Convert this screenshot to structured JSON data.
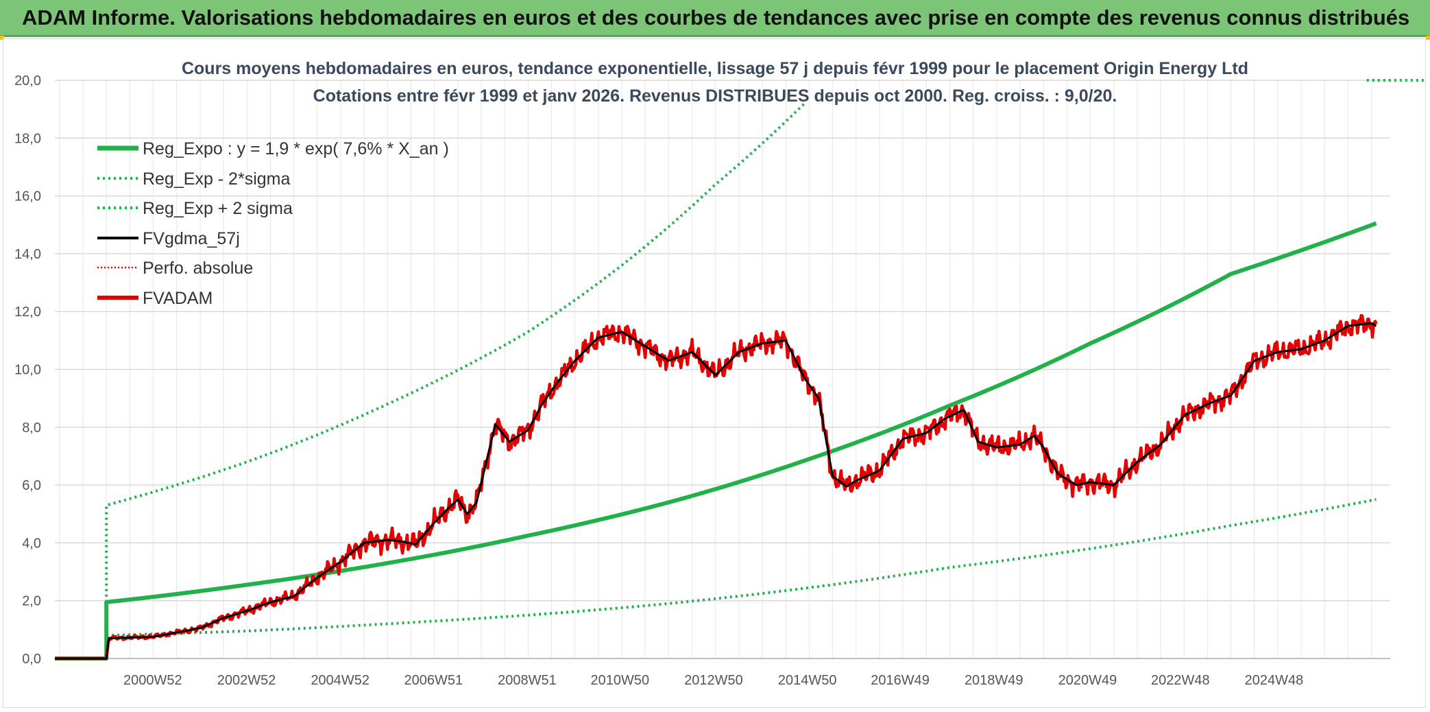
{
  "banner": {
    "title": "ADAM Informe. Valorisations hebdomadaires en euros et des courbes de tendances avec prise en compte des revenus connus distribués"
  },
  "colors": {
    "banner_bg": "#7cc576",
    "reg_expo": "#22b04b",
    "bands": "#22b04b",
    "fvgdma": "#000000",
    "perfo": "#e60000",
    "fvadam": "#e60000",
    "grid": "#d9d9d9"
  },
  "chart_data": {
    "type": "line",
    "title_line1": "Cours moyens hebdomadaires en euros, tendance exponentielle, lissage 57 j depuis févr 1999 pour le placement Origin Energy Ltd",
    "title_line2": "Cotations entre févr 1999 et janv 2026. Revenus DISTRIBUES depuis oct 2000. Reg. croiss. : 9,0/20.",
    "ylim": [
      0,
      20
    ],
    "y_ticks": [
      "0,0",
      "2,0",
      "4,0",
      "6,0",
      "8,0",
      "10,0",
      "12,0",
      "14,0",
      "16,0",
      "18,0",
      "20,0"
    ],
    "x_range": [
      1998.9,
      2027.4
    ],
    "x_tick_labels": [
      "2000W52",
      "2002W52",
      "2004W52",
      "2006W51",
      "2008W51",
      "2010W50",
      "2012W50",
      "2014W50",
      "2016W49",
      "2018W49",
      "2020W49",
      "2022W48",
      "2024W48"
    ],
    "x_tick_years": [
      2000.99,
      2002.99,
      2004.99,
      2006.98,
      2008.98,
      2010.96,
      2012.96,
      2014.96,
      2016.94,
      2018.94,
      2020.94,
      2022.92,
      2024.92
    ],
    "grid": true,
    "legend_position": "top-left",
    "data_start_year": 2000.0,
    "data_end_year": 2027.1,
    "series": [
      {
        "name": "Reg_Expo : y = 1,9 * exp( 7,6% *  X_an )",
        "style": "solid-thick",
        "color": "#22b04b",
        "x": [
          2000.0,
          2003.0,
          2006.0,
          2009.0,
          2012.0,
          2015.0,
          2018.0,
          2021.0,
          2024.0,
          2027.1
        ],
        "y": [
          1.95,
          2.55,
          3.3,
          4.25,
          5.4,
          6.9,
          8.75,
          10.9,
          13.3,
          15.05
        ]
      },
      {
        "name": "Reg_Exp - 2*sigma",
        "style": "dotted",
        "color": "#22b04b",
        "x": [
          2000.0,
          2003.0,
          2006.0,
          2009.0,
          2012.0,
          2015.0,
          2018.0,
          2021.0,
          2024.0,
          2027.1
        ],
        "y": [
          0.8,
          0.95,
          1.2,
          1.5,
          1.9,
          2.45,
          3.15,
          3.8,
          4.6,
          5.5
        ]
      },
      {
        "name": "Reg_Exp + 2 sigma",
        "style": "dotted",
        "color": "#22b04b",
        "x": [
          2000.0,
          2003.0,
          2006.0,
          2009.0,
          2011.0,
          2013.0,
          2014.9
        ],
        "y": [
          5.3,
          6.8,
          8.8,
          11.3,
          13.6,
          16.4,
          19.2
        ],
        "x_flat": [
          2026.9,
          2028.5
        ],
        "y_flat": [
          20.0,
          20.0
        ]
      },
      {
        "name": "FVgdma_57j",
        "style": "solid",
        "color": "#000000",
        "x": [
          1998.9,
          2000.0,
          2000.05,
          2001.0,
          2001.5,
          2002.0,
          2002.5,
          2003.0,
          2003.5,
          2004.0,
          2004.5,
          2005.0,
          2005.5,
          2006.0,
          2006.3,
          2006.6,
          2007.0,
          2007.3,
          2007.5,
          2007.7,
          2007.9,
          2008.3,
          2008.6,
          2009.0,
          2009.3,
          2009.6,
          2010.0,
          2010.5,
          2011.0,
          2011.5,
          2012.0,
          2012.5,
          2013.0,
          2013.5,
          2014.0,
          2014.5,
          2014.9,
          2015.2,
          2015.5,
          2015.8,
          2016.0,
          2016.5,
          2017.0,
          2017.5,
          2017.9,
          2018.3,
          2018.6,
          2019.0,
          2019.5,
          2019.8,
          2020.0,
          2020.3,
          2020.7,
          2021.0,
          2021.5,
          2022.0,
          2022.5,
          2023.0,
          2023.5,
          2024.0,
          2024.5,
          2025.0,
          2025.5,
          2026.0,
          2026.5,
          2027.0,
          2027.1
        ],
        "y": [
          0.0,
          0.0,
          0.7,
          0.75,
          0.9,
          1.05,
          1.4,
          1.65,
          1.95,
          2.15,
          2.8,
          3.35,
          4.0,
          4.1,
          4.05,
          3.95,
          4.7,
          5.2,
          5.5,
          5.0,
          5.4,
          8.1,
          7.5,
          7.9,
          8.8,
          9.5,
          10.3,
          11.1,
          11.3,
          10.8,
          10.3,
          10.6,
          9.8,
          10.6,
          10.9,
          11.0,
          9.7,
          9.0,
          6.3,
          5.95,
          6.15,
          6.5,
          7.6,
          7.8,
          8.3,
          8.6,
          7.5,
          7.3,
          7.4,
          7.7,
          7.3,
          6.4,
          6.0,
          6.1,
          6.0,
          6.8,
          7.4,
          8.4,
          8.8,
          9.1,
          10.3,
          10.6,
          10.7,
          11.0,
          11.5,
          11.6,
          11.5
        ]
      },
      {
        "name": "Perfo. absolue",
        "style": "dotted",
        "color": "#e60000",
        "x": [],
        "y": []
      },
      {
        "name": "FVADAM",
        "style": "solid-thick",
        "color": "#e60000",
        "x": [
          1998.9,
          2000.0,
          2000.05,
          2001.0,
          2001.5,
          2002.0,
          2002.5,
          2003.0,
          2003.5,
          2004.0,
          2004.5,
          2005.0,
          2005.5,
          2006.0,
          2006.3,
          2006.6,
          2007.0,
          2007.3,
          2007.5,
          2007.7,
          2007.9,
          2008.3,
          2008.6,
          2009.0,
          2009.3,
          2009.6,
          2010.0,
          2010.5,
          2011.0,
          2011.5,
          2012.0,
          2012.5,
          2013.0,
          2013.5,
          2014.0,
          2014.5,
          2014.9,
          2015.2,
          2015.5,
          2015.8,
          2016.0,
          2016.5,
          2017.0,
          2017.5,
          2017.9,
          2018.3,
          2018.6,
          2019.0,
          2019.5,
          2019.8,
          2020.0,
          2020.3,
          2020.7,
          2021.0,
          2021.5,
          2022.0,
          2022.5,
          2023.0,
          2023.5,
          2024.0,
          2024.5,
          2025.0,
          2025.5,
          2026.0,
          2026.5,
          2027.0,
          2027.1
        ],
        "y": [
          0.0,
          0.0,
          0.7,
          0.75,
          0.9,
          1.05,
          1.4,
          1.65,
          1.95,
          2.15,
          2.8,
          3.35,
          4.0,
          4.1,
          4.05,
          3.95,
          4.7,
          5.2,
          5.5,
          5.0,
          5.4,
          8.1,
          7.5,
          7.9,
          8.8,
          9.5,
          10.3,
          11.1,
          11.3,
          10.8,
          10.3,
          10.6,
          9.8,
          10.6,
          10.9,
          11.0,
          9.7,
          9.0,
          6.3,
          5.95,
          6.15,
          6.5,
          7.6,
          7.8,
          8.3,
          8.6,
          7.5,
          7.3,
          7.4,
          7.7,
          7.3,
          6.4,
          6.0,
          6.1,
          6.0,
          6.8,
          7.4,
          8.4,
          8.8,
          9.1,
          10.3,
          10.6,
          10.7,
          11.0,
          11.5,
          11.6,
          11.5
        ],
        "noise_amplitude": 0.35
      }
    ]
  }
}
